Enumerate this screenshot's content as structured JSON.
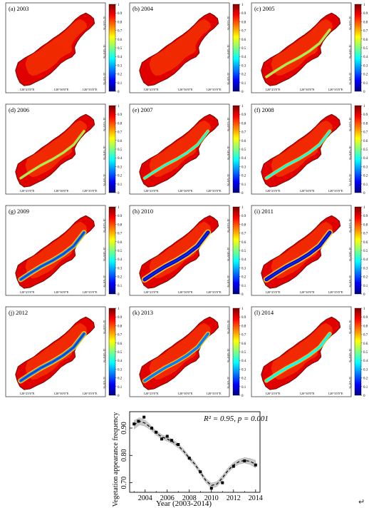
{
  "figure": {
    "colorbar_ticks": [
      "0",
      "0.1",
      "0.2",
      "0.3",
      "0.4",
      "0.5",
      "0.6",
      "0.7",
      "0.8",
      "0.9",
      "1"
    ],
    "colormap": [
      "#00007f",
      "#0000ff",
      "#007fff",
      "#00ffff",
      "#7fff7f",
      "#ffff00",
      "#ff7f00",
      "#ff0000",
      "#7f0000"
    ],
    "lon_labels": [
      "120°25'0\"E",
      "120°30'0\"E",
      "120°35'0\"E"
    ],
    "lat_labels": [
      "31°15'0\"N",
      "31°10'0\"N",
      "31°5'0\"N"
    ],
    "panels": [
      {
        "label": "(a) 2003",
        "low_band": 0.02
      },
      {
        "label": "(b) 2004",
        "low_band": 0.03
      },
      {
        "label": "(c) 2005",
        "low_band": 0.12
      },
      {
        "label": "(d) 2006",
        "low_band": 0.1
      },
      {
        "label": "(e) 2007",
        "low_band": 0.25
      },
      {
        "label": "(f) 2008",
        "low_band": 0.3
      },
      {
        "label": "(g) 2009",
        "low_band": 0.7
      },
      {
        "label": "(h) 2010",
        "low_band": 0.95
      },
      {
        "label": "(i) 2011",
        "low_band": 0.9
      },
      {
        "label": "(j) 2012",
        "low_band": 0.75
      },
      {
        "label": "(k) 2013",
        "low_band": 0.55
      },
      {
        "label": "(l) 2014",
        "low_band": 0.45
      }
    ]
  },
  "chart_data": {
    "type": "scatter",
    "annotation": "R² = 0.95, p = 0.001",
    "xlabel": "Year (2003-2014)",
    "ylabel": "Vegetation appearance frequency",
    "xlim": [
      2002.6,
      2014.4
    ],
    "ylim": [
      0.665,
      0.96
    ],
    "xticks": [
      2004,
      2006,
      2008,
      2010,
      2012,
      2014
    ],
    "yticks": [
      0.7,
      0.8,
      0.9
    ],
    "xtick_labels": [
      "2004",
      "2006",
      "2008",
      "2010",
      "2012",
      "2014"
    ],
    "ytick_labels": [
      "0.70",
      "0.80",
      "0.90"
    ],
    "series": [
      {
        "marker": "square",
        "x": [
          2003.0,
          2003.4,
          2003.9,
          2004.6,
          2005.0,
          2005.5,
          2006.0,
          2006.4,
          2007.0,
          2008.0,
          2009.0,
          2010.0,
          2011.0,
          2012.0,
          2013.0,
          2014.0
        ],
        "y": [
          0.915,
          0.925,
          0.94,
          0.9,
          0.885,
          0.86,
          0.87,
          0.855,
          0.84,
          0.79,
          0.74,
          0.68,
          0.7,
          0.76,
          0.78,
          0.765
        ]
      }
    ],
    "fit": {
      "style": "dashed",
      "band_color": "#c8c8c8",
      "x": [
        2003.0,
        2003.5,
        2004.0,
        2004.5,
        2005.0,
        2005.5,
        2006.0,
        2006.5,
        2007.0,
        2007.5,
        2008.0,
        2008.5,
        2009.0,
        2009.5,
        2010.0,
        2010.5,
        2011.0,
        2011.5,
        2012.0,
        2012.5,
        2013.0,
        2013.5,
        2014.0
      ],
      "y": [
        0.912,
        0.925,
        0.918,
        0.902,
        0.882,
        0.868,
        0.86,
        0.85,
        0.835,
        0.815,
        0.79,
        0.768,
        0.738,
        0.708,
        0.69,
        0.695,
        0.718,
        0.745,
        0.765,
        0.777,
        0.782,
        0.778,
        0.768
      ],
      "band_halfwidth": [
        0.016,
        0.013,
        0.011,
        0.009,
        0.008,
        0.008,
        0.008,
        0.008,
        0.008,
        0.008,
        0.008,
        0.008,
        0.008,
        0.008,
        0.009,
        0.009,
        0.009,
        0.009,
        0.009,
        0.009,
        0.01,
        0.011,
        0.014
      ]
    }
  },
  "footer": {
    "return_mark": "↵"
  }
}
